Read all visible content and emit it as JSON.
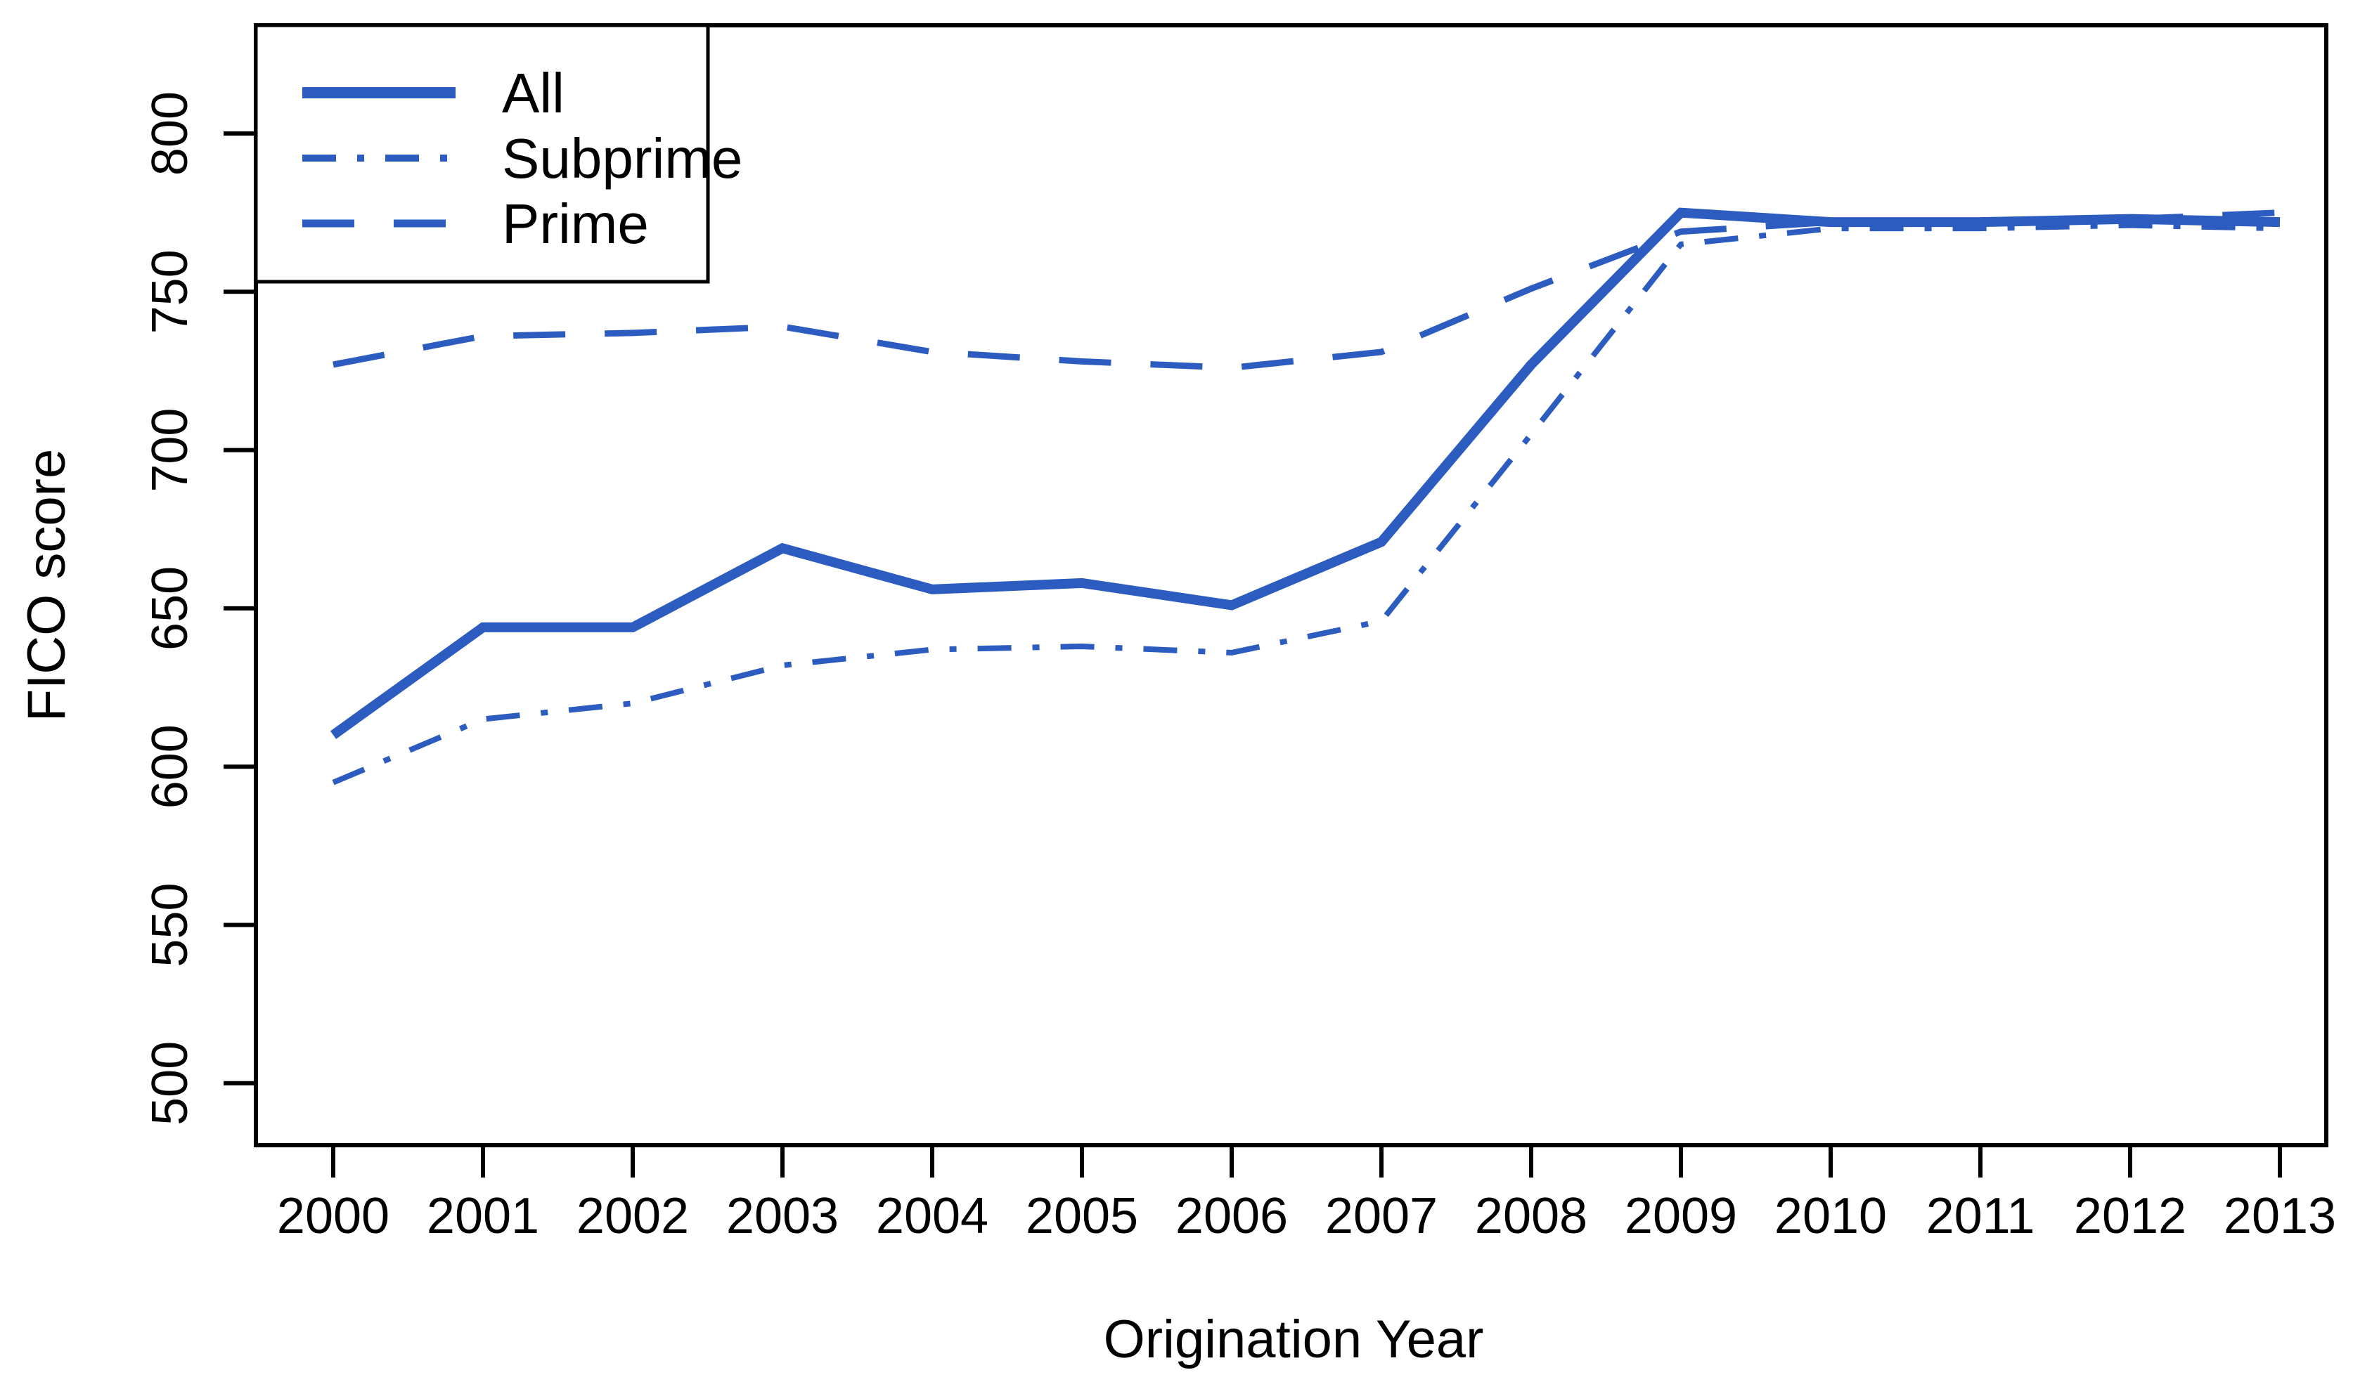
{
  "chart": {
    "xlabel": "Origination Year",
    "ylabel": "FICO score",
    "background_color": "#ffffff",
    "axis_color": "#000000",
    "line_color": "#2d5cc0"
  },
  "chart_data": {
    "type": "line",
    "title": "",
    "xlabel": "Origination Year",
    "ylabel": "FICO score",
    "x": [
      2000,
      2001,
      2002,
      2003,
      2004,
      2005,
      2006,
      2007,
      2008,
      2009,
      2010,
      2011,
      2012,
      2013
    ],
    "xtick_labels": [
      "2000",
      "2001",
      "2002",
      "2003",
      "2004",
      "2005",
      "2006",
      "2007",
      "2008",
      "2009",
      "2010",
      "2011",
      "2012",
      "2013"
    ],
    "yticks": [
      500,
      550,
      600,
      650,
      700,
      750,
      800
    ],
    "ylim": [
      491,
      806
    ],
    "xlim": [
      1999.5,
      2013.3
    ],
    "grid": false,
    "legend_position": "top-left",
    "series": [
      {
        "name": "All",
        "style": "solid",
        "stroke_width": 14,
        "color": "#2d5cc0",
        "values": [
          610,
          644,
          644,
          669,
          656,
          658,
          651,
          671,
          727,
          775,
          772,
          772,
          773,
          772
        ]
      },
      {
        "name": "Subprime",
        "style": "dashdot",
        "stroke_width": 8,
        "color": "#2d5cc0",
        "values": [
          595,
          615,
          620,
          632,
          637,
          638,
          636,
          646,
          705,
          765,
          770,
          770,
          771,
          770
        ]
      },
      {
        "name": "Prime",
        "style": "dashed",
        "stroke_width": 9,
        "color": "#2d5cc0",
        "values": [
          727,
          736,
          737,
          739,
          731,
          728,
          726,
          731,
          751,
          769,
          772,
          772,
          773,
          775
        ]
      }
    ]
  }
}
